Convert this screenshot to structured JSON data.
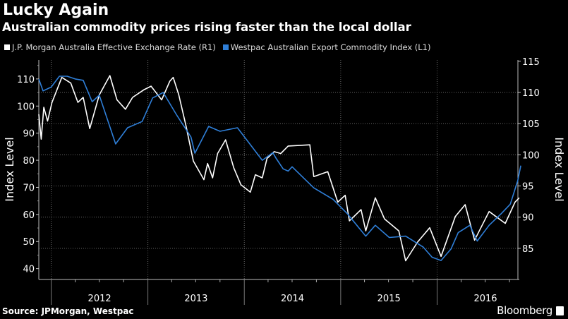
{
  "header": {
    "title": "Lucky Again",
    "subtitle": "Australian commodity prices rising faster than the local dollar"
  },
  "footer": {
    "source": "Source: JPMorgan, Westpac",
    "brand": "Bloomberg"
  },
  "chart_data": {
    "type": "line",
    "title": "Lucky Again",
    "subtitle": "Australian commodity prices rising faster than the local dollar",
    "legend_position": "top-left",
    "grid": true,
    "x_axis": {
      "type": "date",
      "range": [
        "2011-11-15",
        "2016-12-20"
      ],
      "tick_labels": [
        "2012",
        "2013",
        "2014",
        "2015",
        "2016"
      ]
    },
    "y_left": {
      "label": "Index Level",
      "range": [
        36,
        117
      ],
      "ticks": [
        40,
        50,
        60,
        70,
        80,
        90,
        100,
        110
      ]
    },
    "y_right": {
      "label": "Index Level",
      "range": [
        80,
        115.2
      ],
      "ticks": [
        85,
        90,
        95,
        100,
        105,
        110,
        115
      ]
    },
    "series": [
      {
        "name": "J.P. Morgan Australia Effective Exchange Rate (R1)",
        "axis": "right",
        "color": "#ffffff",
        "points": [
          [
            "2011-11-15",
            106.5
          ],
          [
            "2011-11-24",
            102.5
          ],
          [
            "2011-12-04",
            107.6
          ],
          [
            "2011-12-18",
            105.4
          ],
          [
            "2012-01-04",
            108.4
          ],
          [
            "2012-02-10",
            112.4
          ],
          [
            "2012-03-15",
            111.5
          ],
          [
            "2012-04-11",
            108.4
          ],
          [
            "2012-05-01",
            109.2
          ],
          [
            "2012-05-26",
            104.2
          ],
          [
            "2012-07-01",
            109.6
          ],
          [
            "2012-08-10",
            112.7
          ],
          [
            "2012-09-06",
            108.8
          ],
          [
            "2012-10-08",
            107.3
          ],
          [
            "2012-11-04",
            109.2
          ],
          [
            "2012-12-16",
            110.4
          ],
          [
            "2013-01-13",
            111
          ],
          [
            "2013-02-22",
            108.8
          ],
          [
            "2013-03-25",
            111.8
          ],
          [
            "2013-04-07",
            112.4
          ],
          [
            "2013-04-28",
            109.6
          ],
          [
            "2013-05-25",
            104.7
          ],
          [
            "2013-06-22",
            99
          ],
          [
            "2013-08-01",
            96
          ],
          [
            "2013-08-15",
            98.6
          ],
          [
            "2013-09-03",
            96.3
          ],
          [
            "2013-09-22",
            100.2
          ],
          [
            "2013-10-22",
            102.4
          ],
          [
            "2013-11-22",
            97.9
          ],
          [
            "2013-12-19",
            95.2
          ],
          [
            "2014-01-24",
            94
          ],
          [
            "2014-02-12",
            96.8
          ],
          [
            "2014-03-10",
            96.3
          ],
          [
            "2014-03-28",
            99.4
          ],
          [
            "2014-04-24",
            100.5
          ],
          [
            "2014-05-19",
            100.2
          ],
          [
            "2014-06-16",
            101.4
          ],
          [
            "2014-09-06",
            101.6
          ],
          [
            "2014-09-21",
            96.5
          ],
          [
            "2014-11-13",
            97.3
          ],
          [
            "2014-12-21",
            92.4
          ],
          [
            "2015-01-18",
            93.5
          ],
          [
            "2015-02-03",
            89.4
          ],
          [
            "2015-03-19",
            91.2
          ],
          [
            "2015-04-06",
            87.8
          ],
          [
            "2015-05-12",
            93.1
          ],
          [
            "2015-06-16",
            89.7
          ],
          [
            "2015-08-09",
            87.8
          ],
          [
            "2015-09-04",
            83
          ],
          [
            "2015-10-19",
            86
          ],
          [
            "2015-12-04",
            88.3
          ],
          [
            "2016-01-16",
            83.7
          ],
          [
            "2016-03-10",
            90.1
          ],
          [
            "2016-04-16",
            92
          ],
          [
            "2016-05-22",
            86.3
          ],
          [
            "2016-07-16",
            90.9
          ],
          [
            "2016-09-15",
            89
          ],
          [
            "2016-10-22",
            92.4
          ],
          [
            "2016-11-07",
            93.1
          ]
        ]
      },
      {
        "name": "Westpac Australian Export Commodity Index (L1)",
        "axis": "left",
        "color": "#2f7fd8",
        "points": [
          [
            "2011-11-15",
            110
          ],
          [
            "2011-12-01",
            105.6
          ],
          [
            "2012-01-01",
            107
          ],
          [
            "2012-02-01",
            111
          ],
          [
            "2012-03-01",
            111
          ],
          [
            "2012-04-01",
            110
          ],
          [
            "2012-05-01",
            109.5
          ],
          [
            "2012-06-04",
            101.6
          ],
          [
            "2012-07-01",
            104
          ],
          [
            "2012-09-01",
            86
          ],
          [
            "2012-10-16",
            92
          ],
          [
            "2012-12-10",
            94.3
          ],
          [
            "2013-01-19",
            103
          ],
          [
            "2013-02-28",
            105
          ],
          [
            "2013-04-22",
            96.4
          ],
          [
            "2013-06-13",
            88.6
          ],
          [
            "2013-06-28",
            82.6
          ],
          [
            "2013-08-19",
            92.5
          ],
          [
            "2013-10-01",
            90.7
          ],
          [
            "2013-12-06",
            92
          ],
          [
            "2014-01-16",
            86.8
          ],
          [
            "2014-03-10",
            80
          ],
          [
            "2014-04-19",
            82.8
          ],
          [
            "2014-05-01",
            80.8
          ],
          [
            "2014-05-28",
            76.8
          ],
          [
            "2014-06-16",
            76
          ],
          [
            "2014-07-01",
            77.6
          ],
          [
            "2014-09-21",
            69.8
          ],
          [
            "2014-12-03",
            65.6
          ],
          [
            "2015-01-25",
            60.4
          ],
          [
            "2015-04-06",
            52
          ],
          [
            "2015-05-12",
            56
          ],
          [
            "2015-07-04",
            51.5
          ],
          [
            "2015-09-04",
            52
          ],
          [
            "2015-11-09",
            48
          ],
          [
            "2015-12-13",
            44.2
          ],
          [
            "2016-01-16",
            43
          ],
          [
            "2016-02-23",
            47.3
          ],
          [
            "2016-03-21",
            53.3
          ],
          [
            "2016-05-04",
            56
          ],
          [
            "2016-06-01",
            50.2
          ],
          [
            "2016-07-16",
            56
          ],
          [
            "2016-09-01",
            60.4
          ],
          [
            "2016-10-04",
            63.8
          ],
          [
            "2016-11-01",
            72.4
          ],
          [
            "2016-11-13",
            78
          ]
        ]
      }
    ]
  }
}
